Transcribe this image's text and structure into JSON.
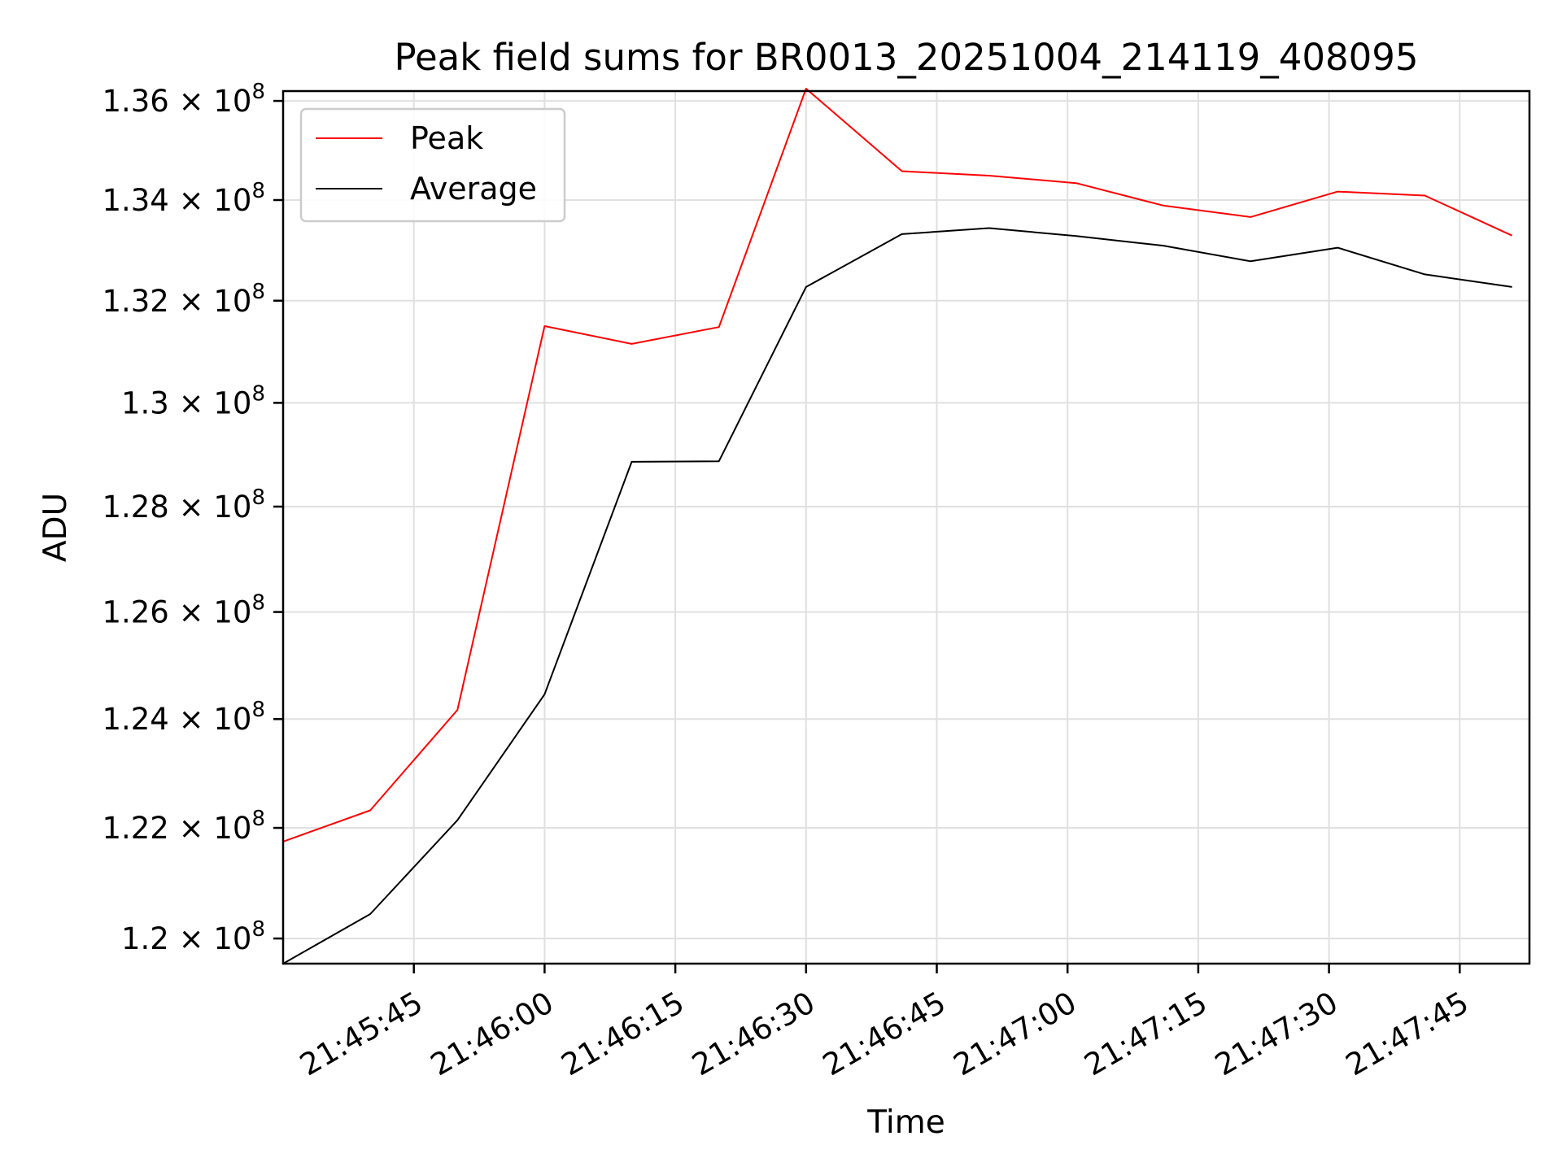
{
  "chart_data": {
    "type": "line",
    "title": "Peak field sums for BR0013_20251004_214119_408095",
    "xlabel": "Time",
    "ylabel": "ADU",
    "x": [
      "21:45:30",
      "21:45:40",
      "21:45:50",
      "21:46:00",
      "21:46:10",
      "21:46:20",
      "21:46:30",
      "21:46:41",
      "21:46:51",
      "21:47:01",
      "21:47:11",
      "21:47:21",
      "21:47:31",
      "21:47:41",
      "21:47:51"
    ],
    "x_seconds": [
      0,
      10,
      20,
      30,
      40,
      50,
      60,
      71,
      81,
      91,
      101,
      111,
      121,
      131,
      141
    ],
    "xlim_seconds": [
      0,
      143
    ],
    "xticks": [
      "21:45:45",
      "21:46:00",
      "21:46:15",
      "21:46:30",
      "21:46:45",
      "21:47:00",
      "21:47:15",
      "21:47:30",
      "21:47:45"
    ],
    "xticks_seconds": [
      15,
      30,
      45,
      60,
      75,
      90,
      105,
      120,
      135
    ],
    "ylim": [
      119550000,
      136200000
    ],
    "yticks": [
      {
        "value": 120000000,
        "mant": "1.2"
      },
      {
        "value": 122000000,
        "mant": "1.22"
      },
      {
        "value": 124000000,
        "mant": "1.24"
      },
      {
        "value": 126000000,
        "mant": "1.26"
      },
      {
        "value": 128000000,
        "mant": "1.28"
      },
      {
        "value": 130000000,
        "mant": "1.3"
      },
      {
        "value": 132000000,
        "mant": "1.32"
      },
      {
        "value": 134000000,
        "mant": "1.34"
      },
      {
        "value": 136000000,
        "mant": "1.36"
      }
    ],
    "ytick_suffix": "× 10",
    "ytick_exp": "8",
    "log_scale_y": true,
    "grid": true,
    "legend_placement": "upper-left",
    "series": [
      {
        "name": "Peak",
        "color": "#ff0000",
        "values": [
          121750000,
          122320000,
          124170000,
          131500000,
          131150000,
          131480000,
          136250000,
          134580000,
          134490000,
          134340000,
          133890000,
          133660000,
          134170000,
          134090000,
          133290000
        ]
      },
      {
        "name": "Average",
        "color": "#000000",
        "values": [
          119550000,
          120440000,
          122140000,
          124460000,
          128860000,
          128870000,
          132270000,
          133320000,
          133440000,
          133280000,
          133090000,
          132780000,
          133050000,
          132520000,
          132270000
        ]
      }
    ]
  }
}
